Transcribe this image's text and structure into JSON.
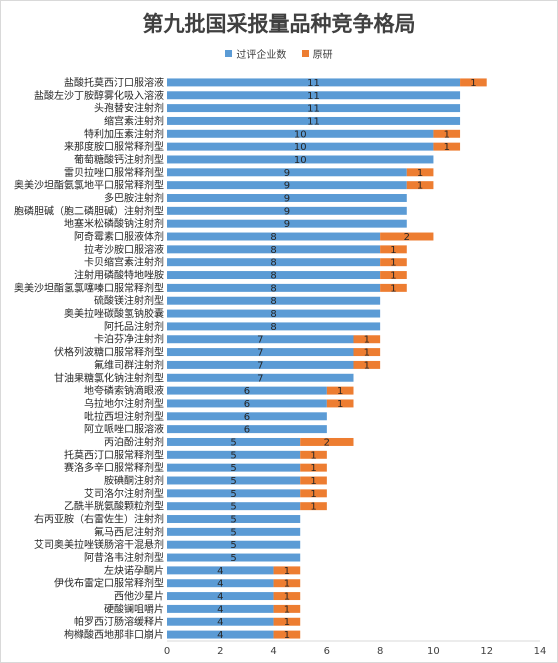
{
  "chart_data": {
    "type": "bar",
    "orientation": "horizontal",
    "stacked": true,
    "title": "第九批国采报量品种竞争格局",
    "categories": [
      "盐酸托莫西汀口服溶液",
      "盐酸左沙丁胺醇雾化吸入溶液",
      "头孢替安注射剂",
      "缩宫素注射剂",
      "特利加压素注射剂",
      "来那度胺口服常释剂型",
      "葡萄糖酸钙注射剂型",
      "雷贝拉唑口服常释剂型",
      "奥美沙坦酯氨氯地平口服常释剂型",
      "多巴胺注射剂",
      "胞磷胆碱（胞二磷胆碱）注射剂型",
      "地塞米松磷酸钠注射剂",
      "阿奇霉素口服液体剂",
      "拉考沙胺口服溶液",
      "卡贝缩宫素注射剂",
      "注射用磷酸特地唑胺",
      "奥美沙坦酯氢氯噻嗪口服常释剂型",
      "硫酸镁注射剂型",
      "奥美拉唑碳酸氢钠胶囊",
      "阿托品注射剂",
      "卡泊芬净注射剂",
      "伏格列波糖口服常释剂型",
      "氟维司群注射剂",
      "甘油果糖氯化钠注射剂型",
      "地夸磷索钠滴眼液",
      "乌拉地尔注射剂型",
      "吡拉西坦注射剂型",
      "阿立哌唑口服溶液",
      "丙泊酚注射剂",
      "托莫西汀口服常释剂型",
      "赛洛多辛口服常释剂型",
      "胺碘酮注射剂",
      "艾司洛尔注射剂型",
      "乙酰半胱氨酸颗粒剂型",
      "右丙亚胺（右雷佐生）注射剂",
      "氟马西尼注射剂",
      "艾司奥美拉唑镁肠溶干混悬剂",
      "阿昔洛韦注射剂型",
      "左炔诺孕酮片",
      "伊伐布雷定口服常释剂型",
      "西他沙星片",
      "硬酸镧咀嚼片",
      "帕罗西汀肠溶缓释片",
      "枸橼酸西地那非口崩片"
    ],
    "series": [
      {
        "name": "过评企业数",
        "color": "#5B9BD5",
        "values": [
          11,
          11,
          11,
          11,
          10,
          10,
          10,
          9,
          9,
          9,
          9,
          9,
          8,
          8,
          8,
          8,
          8,
          8,
          8,
          8,
          7,
          7,
          7,
          7,
          6,
          6,
          6,
          6,
          5,
          5,
          5,
          5,
          5,
          5,
          5,
          5,
          5,
          5,
          4,
          4,
          4,
          4,
          4,
          4
        ]
      },
      {
        "name": "原研",
        "color": "#ED7D31",
        "values": [
          1,
          0,
          0,
          0,
          1,
          1,
          0,
          1,
          1,
          0,
          0,
          0,
          2,
          1,
          1,
          1,
          1,
          0,
          0,
          0,
          1,
          1,
          1,
          0,
          1,
          1,
          0,
          0,
          2,
          1,
          1,
          1,
          1,
          1,
          0,
          0,
          0,
          0,
          1,
          1,
          1,
          1,
          1,
          1
        ]
      }
    ],
    "xlim": [
      0,
      14
    ],
    "xticks": [
      0,
      2,
      4,
      6,
      8,
      10,
      12,
      14
    ],
    "legend_position": "top-center",
    "grid": false
  }
}
